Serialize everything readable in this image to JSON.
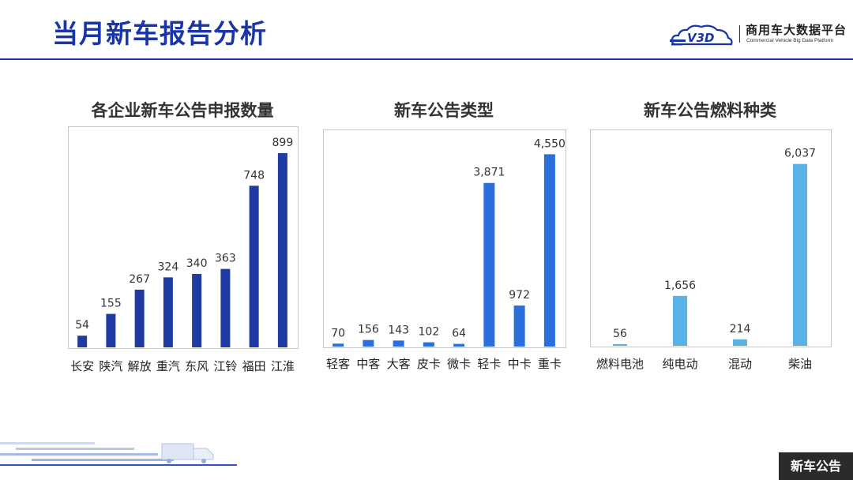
{
  "header": {
    "title": "当月新车报告分析",
    "logo_text": "商用车大数据平台",
    "logo_subtext": "Commercial Vehicle Big Data Platform",
    "logo_mark": "V3D"
  },
  "footer": {
    "tag_label": "新车公告"
  },
  "colors": {
    "accent": "#1a35a8",
    "series_dark": "#1f3ba3",
    "series_mid": "#2a6fdb",
    "series_light": "#58b2e6"
  },
  "chart_data": [
    {
      "type": "bar",
      "title": "各企业新车公告申报数量",
      "categories": [
        "长安",
        "陕汽",
        "解放",
        "重汽",
        "东风",
        "江铃",
        "福田",
        "江淮"
      ],
      "values": [
        54,
        155,
        267,
        324,
        340,
        363,
        748,
        899
      ],
      "value_labels": [
        "54",
        "155",
        "267",
        "324",
        "340",
        "363",
        "748",
        "899"
      ],
      "ylim": [
        0,
        950
      ],
      "color": "#1f3ba3",
      "grid": false
    },
    {
      "type": "bar",
      "title": "新车公告类型",
      "categories": [
        "轻客",
        "中客",
        "大客",
        "皮卡",
        "微卡",
        "轻卡",
        "中卡",
        "重卡"
      ],
      "values": [
        70,
        156,
        143,
        102,
        64,
        3871,
        972,
        4550
      ],
      "value_labels": [
        "70",
        "156",
        "143",
        "102",
        "64",
        "3,871",
        "972",
        "4,550"
      ],
      "ylim": [
        0,
        4800
      ],
      "color": "#2a6fdb",
      "grid": false
    },
    {
      "type": "bar",
      "title": "新车公告燃料种类",
      "categories": [
        "燃料电池",
        "纯电动",
        "混动",
        "柴油"
      ],
      "values": [
        56,
        1656,
        214,
        6037
      ],
      "value_labels": [
        "56",
        "1,656",
        "214",
        "6,037"
      ],
      "ylim": [
        0,
        6500
      ],
      "color": "#58b2e6",
      "grid": false
    }
  ]
}
